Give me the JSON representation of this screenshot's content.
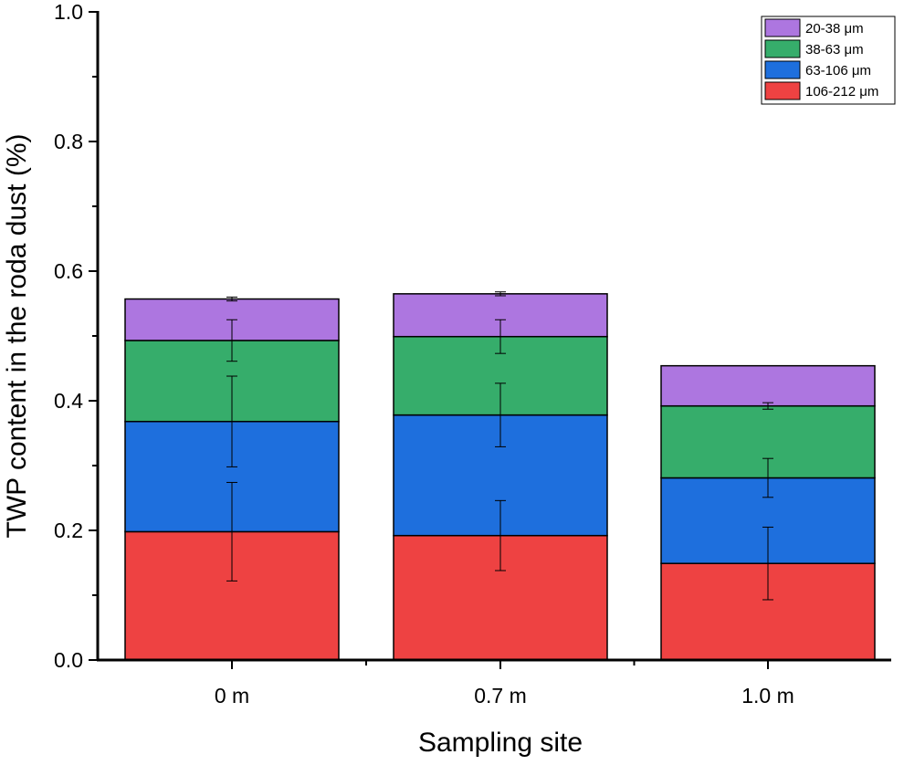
{
  "chart_data": {
    "type": "bar",
    "stacked": true,
    "title": "",
    "xlabel": "Sampling site",
    "ylabel": "TWP content in the roda dust (%)",
    "ylim": [
      0.0,
      1.0
    ],
    "yticks": [
      0.0,
      0.2,
      0.4,
      0.6,
      0.8,
      1.0
    ],
    "ytick_labels": [
      "0.0",
      "0.2",
      "0.4",
      "0.6",
      "0.8",
      "1.0"
    ],
    "grid": false,
    "legend_position": "top-right",
    "categories": [
      "0 m",
      "0.7 m",
      "1.0 m"
    ],
    "series": [
      {
        "name": "106-212 μm",
        "color": "#ee4242",
        "values": [
          0.198,
          0.192,
          0.149
        ],
        "error": [
          0.076,
          0.054,
          0.056
        ]
      },
      {
        "name": "63-106 μm",
        "color": "#1e6fdd",
        "values": [
          0.17,
          0.186,
          0.132
        ],
        "error": [
          0.07,
          0.049,
          0.03
        ]
      },
      {
        "name": "38-63 μm",
        "color": "#36ad6b",
        "values": [
          0.125,
          0.121,
          0.111
        ],
        "error": [
          0.032,
          0.026,
          0.005
        ]
      },
      {
        "name": "20-38 μm",
        "color": "#ad76e0",
        "values": [
          0.064,
          0.066,
          0.062
        ],
        "error": [
          0.003,
          0.003,
          0.0
        ]
      }
    ]
  }
}
